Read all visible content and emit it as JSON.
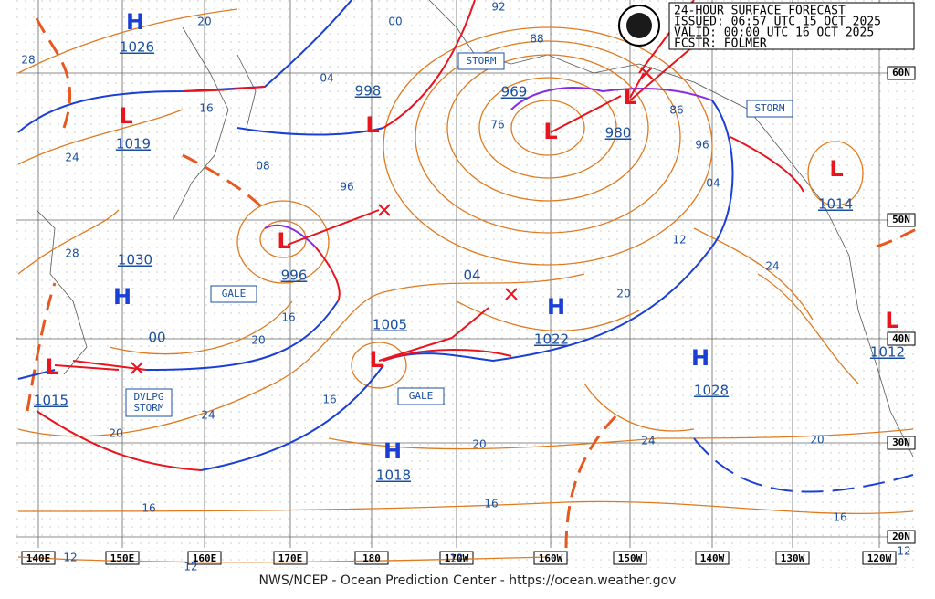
{
  "header": {
    "lines": [
      "24-HOUR SURFACE FORECAST",
      "ISSUED: 06:57 UTC 15 OCT 2025",
      "VALID:  00:00 UTC 16 OCT 2025",
      "FCSTR:  FOLMER"
    ]
  },
  "centers": [
    {
      "symbol": "H",
      "pressure": "1026"
    },
    {
      "symbol": "L",
      "pressure": "1019"
    },
    {
      "symbol": "L",
      "pressure": "998"
    },
    {
      "symbol": "L",
      "pressure": "969"
    },
    {
      "symbol": "L",
      "pressure": "980"
    },
    {
      "symbol": "L",
      "pressure": "996"
    },
    {
      "symbol": "H",
      "pressure": "1030"
    },
    {
      "symbol": "L",
      "pressure": "1015"
    },
    {
      "symbol": "L",
      "pressure": "1005"
    },
    {
      "symbol": "H",
      "pressure": "1022"
    },
    {
      "symbol": "H",
      "pressure": "1028"
    },
    {
      "symbol": "H",
      "pressure": "1018"
    },
    {
      "symbol": "L",
      "pressure": "1014"
    },
    {
      "symbol": "L",
      "pressure": "1012"
    }
  ],
  "isobar_labels": [
    "20",
    "00",
    "92",
    "88",
    "28",
    "04",
    "16",
    "76",
    "86",
    "24",
    "08",
    "96",
    "96",
    "04",
    "12",
    "28",
    "04",
    "24",
    "20",
    "16",
    "20",
    "00",
    "16",
    "24",
    "20",
    "20",
    "24",
    "20",
    "16",
    "16",
    "16",
    "12",
    "12",
    "12",
    "12"
  ],
  "warnings": [
    "STORM",
    "STORM",
    "GALE",
    "GALE",
    "DVLPG\nSTORM"
  ],
  "longitudes": [
    "140E",
    "150E",
    "160E",
    "170E",
    "180",
    "170W",
    "160W",
    "150W",
    "140W",
    "130W",
    "120W"
  ],
  "latitudes": [
    "60N",
    "50N",
    "40N",
    "30N",
    "20N"
  ],
  "footer": "NWS/NCEP - Ocean Prediction Center - https://ocean.weather.gov"
}
